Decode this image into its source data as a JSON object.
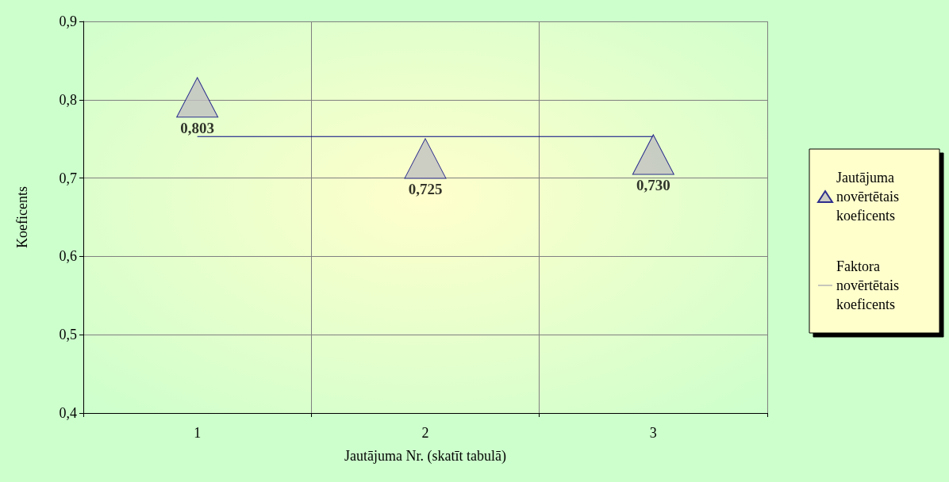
{
  "chart_data": {
    "type": "scatter",
    "xlabel": "Jautājuma Nr. (skatīt tabulā)",
    "ylabel": "Koeficents",
    "categories": [
      "1",
      "2",
      "3"
    ],
    "ylim": [
      0.4,
      0.9
    ],
    "yticks": [
      {
        "value": 0.4,
        "label": "0,4"
      },
      {
        "value": 0.5,
        "label": "0,5"
      },
      {
        "value": 0.6,
        "label": "0,6"
      },
      {
        "value": 0.7,
        "label": "0,7"
      },
      {
        "value": 0.8,
        "label": "0,8"
      },
      {
        "value": 0.9,
        "label": "0,9"
      }
    ],
    "grid": true,
    "legend": "right",
    "series": [
      {
        "name": "Jautājuma novērtētais koeficents",
        "marker": "triangle",
        "color": "#c0c0c0",
        "values": [
          0.803,
          0.725,
          0.73
        ],
        "value_labels": [
          "0,803",
          "0,725",
          "0,730"
        ]
      },
      {
        "name": "Faktora novērtētais koeficents",
        "type": "line",
        "marker": "none",
        "color": "#000080",
        "values": [
          0.753,
          0.753,
          0.753
        ]
      }
    ]
  }
}
